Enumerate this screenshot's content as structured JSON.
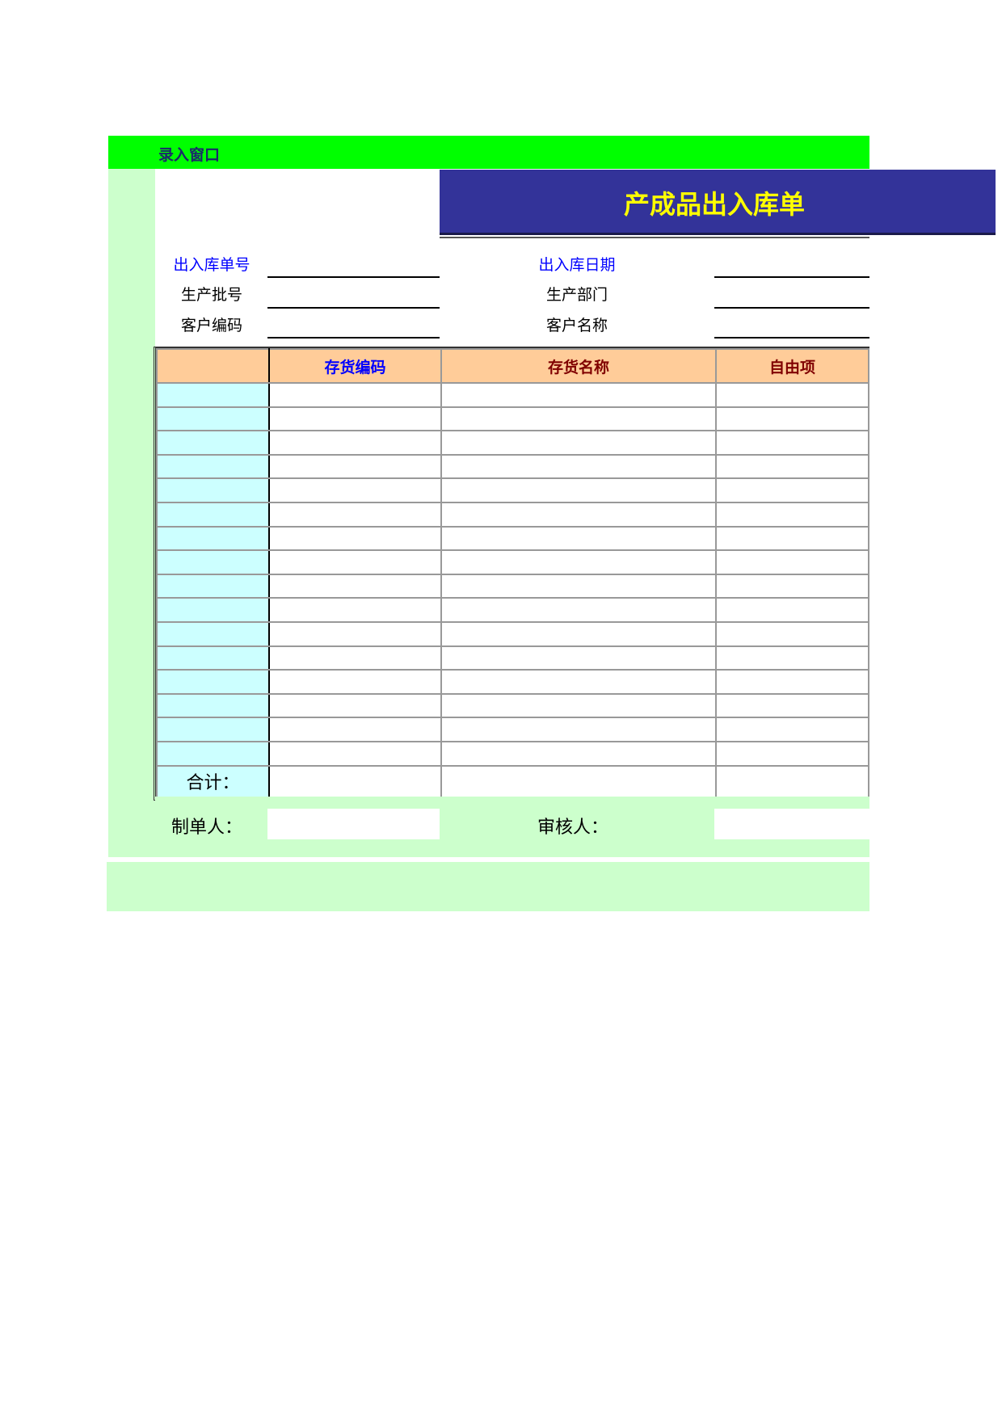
{
  "header": {
    "window_label": "录入窗口",
    "title": "产成品出入库单"
  },
  "colors": {
    "bar": "#00ff00",
    "title_bg": "#333399",
    "title_text": "#ffff00",
    "header_bg": "#ffcc99",
    "row_label_bg": "#ccffff",
    "panel_bg": "#ccffcc"
  },
  "fields": {
    "left": [
      {
        "label": "出入库单号",
        "value": ""
      },
      {
        "label": "生产批号",
        "value": ""
      },
      {
        "label": "客户编码",
        "value": ""
      }
    ],
    "right": [
      {
        "label": "出入库日期",
        "value": ""
      },
      {
        "label": "生产部门",
        "value": ""
      },
      {
        "label": "客户名称",
        "value": ""
      }
    ]
  },
  "table": {
    "columns": [
      "",
      "存货编码",
      "存货名称",
      "自由项"
    ],
    "total_label": "合计："
  },
  "footer": {
    "maker_label": "制单人：",
    "reviewer_label": "审核人："
  }
}
